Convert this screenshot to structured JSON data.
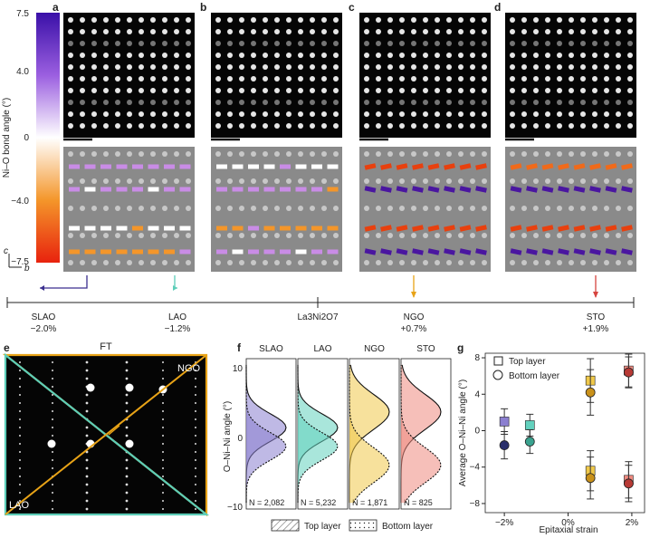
{
  "panel_letters": {
    "a": "a",
    "b": "b",
    "c": "c",
    "d": "d",
    "e": "e",
    "f": "f",
    "g": "g"
  },
  "colorbar": {
    "label": "Ni–O bond angle (°)",
    "ticks": [
      "7.5",
      "4.0",
      "0",
      "−4.0",
      "−7.5"
    ],
    "axis_c": "c",
    "axis_b": "b"
  },
  "strain_axis": {
    "substrates": [
      {
        "name": "SLAO",
        "strain": "−2.0%",
        "color": "#3b2f8f"
      },
      {
        "name": "LAO",
        "strain": "−1.2%",
        "color": "#5ccdb8"
      },
      {
        "name": "NGO",
        "strain": "+0.7%",
        "color": "#e8a317"
      },
      {
        "name": "STO",
        "strain": "+1.9%",
        "color": "#d6443f"
      }
    ],
    "center_label": "La3Ni2O7"
  },
  "panel_e": {
    "title": "FT",
    "corner_upper": "NGO",
    "corner_lower": "LAO"
  },
  "panel_f": {
    "ylabel": "O–Ni–Ni angle (°)",
    "yticks": [
      "10",
      "0",
      "−10"
    ],
    "columns": [
      {
        "name": "SLAO",
        "n": "N = 2,082",
        "color": "#8b7fd0"
      },
      {
        "name": "LAO",
        "n": "N = 5,232",
        "color": "#63d1be"
      },
      {
        "name": "NGO",
        "n": "N = 1,871",
        "color": "#f0c94a"
      },
      {
        "name": "STO",
        "n": "N = 825",
        "color": "#ef8a80"
      }
    ],
    "legend_top": "Top layer",
    "legend_bottom": "Bottom layer"
  },
  "chart_data": {
    "type": "scatter",
    "ylabel": "Average O–Ni–Ni angle (°)",
    "xlabel": "Epitaxial strain",
    "xticks": [
      "−2%",
      "0%",
      "2%"
    ],
    "yticks": [
      "8",
      "4",
      "0",
      "−4",
      "−8"
    ],
    "xlim": [
      -2.6,
      2.4
    ],
    "ylim": [
      -9,
      8.5
    ],
    "legend": [
      "Top layer",
      "Bottom layer"
    ],
    "series": [
      {
        "name": "Top layer",
        "marker": "square",
        "points": [
          {
            "x": -2.0,
            "y": 1.0,
            "err": 1.4,
            "color": "#8b7fd0"
          },
          {
            "x": -1.2,
            "y": 0.6,
            "err": 1.2,
            "color": "#63d1be"
          },
          {
            "x": 0.7,
            "y": 5.5,
            "err": 2.4,
            "color": "#f0c94a"
          },
          {
            "x": 0.7,
            "y": -4.4,
            "err": 2.2,
            "color": "#f0c94a"
          },
          {
            "x": 1.9,
            "y": 6.6,
            "err": 1.8,
            "color": "#ef8a80"
          },
          {
            "x": 1.9,
            "y": -5.4,
            "err": 2.0,
            "color": "#ef8a80"
          }
        ]
      },
      {
        "name": "Bottom layer",
        "marker": "circle",
        "points": [
          {
            "x": -2.0,
            "y": -1.6,
            "err": 1.5,
            "color": "#2a2f6b"
          },
          {
            "x": -1.2,
            "y": -1.2,
            "err": 1.3,
            "color": "#3aa28f"
          },
          {
            "x": 0.7,
            "y": 4.2,
            "err": 2.5,
            "color": "#c9911a"
          },
          {
            "x": 0.7,
            "y": -5.2,
            "err": 2.3,
            "color": "#c9911a"
          },
          {
            "x": 1.9,
            "y": 6.4,
            "err": 1.7,
            "color": "#b83a35"
          },
          {
            "x": 1.9,
            "y": -5.8,
            "err": 2.0,
            "color": "#b83a35"
          }
        ]
      }
    ]
  }
}
